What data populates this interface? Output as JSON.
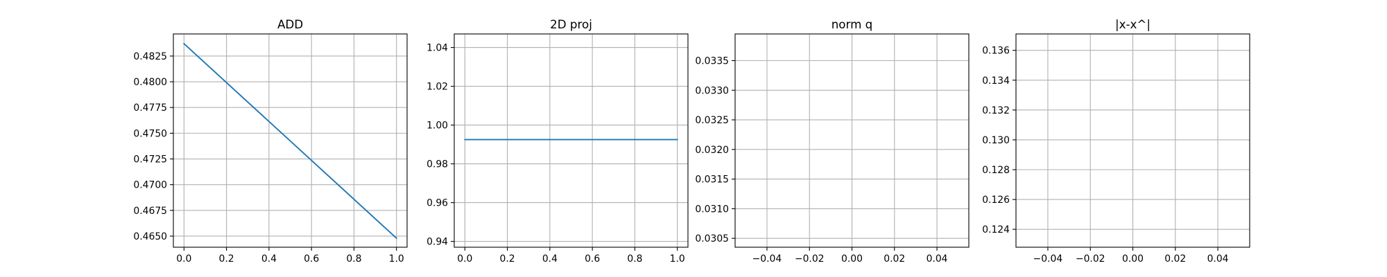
{
  "chart_data": [
    {
      "type": "line",
      "title": "ADD",
      "xlim": [
        -0.05,
        1.05
      ],
      "ylim": [
        0.46392,
        0.48465
      ],
      "xticks": [
        0.0,
        0.2,
        0.4,
        0.6,
        0.8,
        1.0
      ],
      "xtick_labels": [
        "0.0",
        "0.2",
        "0.4",
        "0.6",
        "0.8",
        "1.0"
      ],
      "yticks": [
        0.465,
        0.4675,
        0.47,
        0.4725,
        0.475,
        0.4775,
        0.48,
        0.4825
      ],
      "ytick_labels": [
        "0.4650",
        "0.4675",
        "0.4700",
        "0.4725",
        "0.4750",
        "0.4775",
        "0.4800",
        "0.4825"
      ],
      "grid": true,
      "series": [
        {
          "x": [
            0.0,
            1.0
          ],
          "y": [
            0.4837,
            0.4648
          ],
          "color": "#1f77b4"
        }
      ]
    },
    {
      "type": "line",
      "title": "2D proj",
      "xlim": [
        -0.05,
        1.05
      ],
      "ylim": [
        0.937,
        1.047
      ],
      "xticks": [
        0.0,
        0.2,
        0.4,
        0.6,
        0.8,
        1.0
      ],
      "xtick_labels": [
        "0.0",
        "0.2",
        "0.4",
        "0.6",
        "0.8",
        "1.0"
      ],
      "yticks": [
        0.94,
        0.96,
        0.98,
        1.0,
        1.02,
        1.04
      ],
      "ytick_labels": [
        "0.94",
        "0.96",
        "0.98",
        "1.00",
        "1.02",
        "1.04"
      ],
      "grid": true,
      "series": [
        {
          "x": [
            0.0,
            1.0
          ],
          "y": [
            0.9925,
            0.9925
          ],
          "color": "#1f77b4"
        }
      ]
    },
    {
      "type": "line",
      "title": "norm q",
      "xlim": [
        -0.055,
        0.055
      ],
      "ylim": [
        0.03035,
        0.03395
      ],
      "xticks": [
        -0.04,
        -0.02,
        0.0,
        0.02,
        0.04
      ],
      "xtick_labels": [
        "−0.04",
        "−0.02",
        "0.00",
        "0.02",
        "0.04"
      ],
      "yticks": [
        0.0305,
        0.031,
        0.0315,
        0.032,
        0.0325,
        0.033,
        0.0335
      ],
      "ytick_labels": [
        "0.0305",
        "0.0310",
        "0.0315",
        "0.0320",
        "0.0325",
        "0.0330",
        "0.0335"
      ],
      "grid": true,
      "series": []
    },
    {
      "type": "line",
      "title": "|x-x^|",
      "xlim": [
        -0.055,
        0.055
      ],
      "ylim": [
        0.1228,
        0.1371
      ],
      "xticks": [
        -0.04,
        -0.02,
        0.0,
        0.02,
        0.04
      ],
      "xtick_labels": [
        "−0.04",
        "−0.02",
        "0.00",
        "0.02",
        "0.04"
      ],
      "yticks": [
        0.124,
        0.126,
        0.128,
        0.13,
        0.132,
        0.134,
        0.136
      ],
      "ytick_labels": [
        "0.124",
        "0.126",
        "0.128",
        "0.130",
        "0.132",
        "0.134",
        "0.136"
      ],
      "grid": true,
      "series": []
    }
  ]
}
